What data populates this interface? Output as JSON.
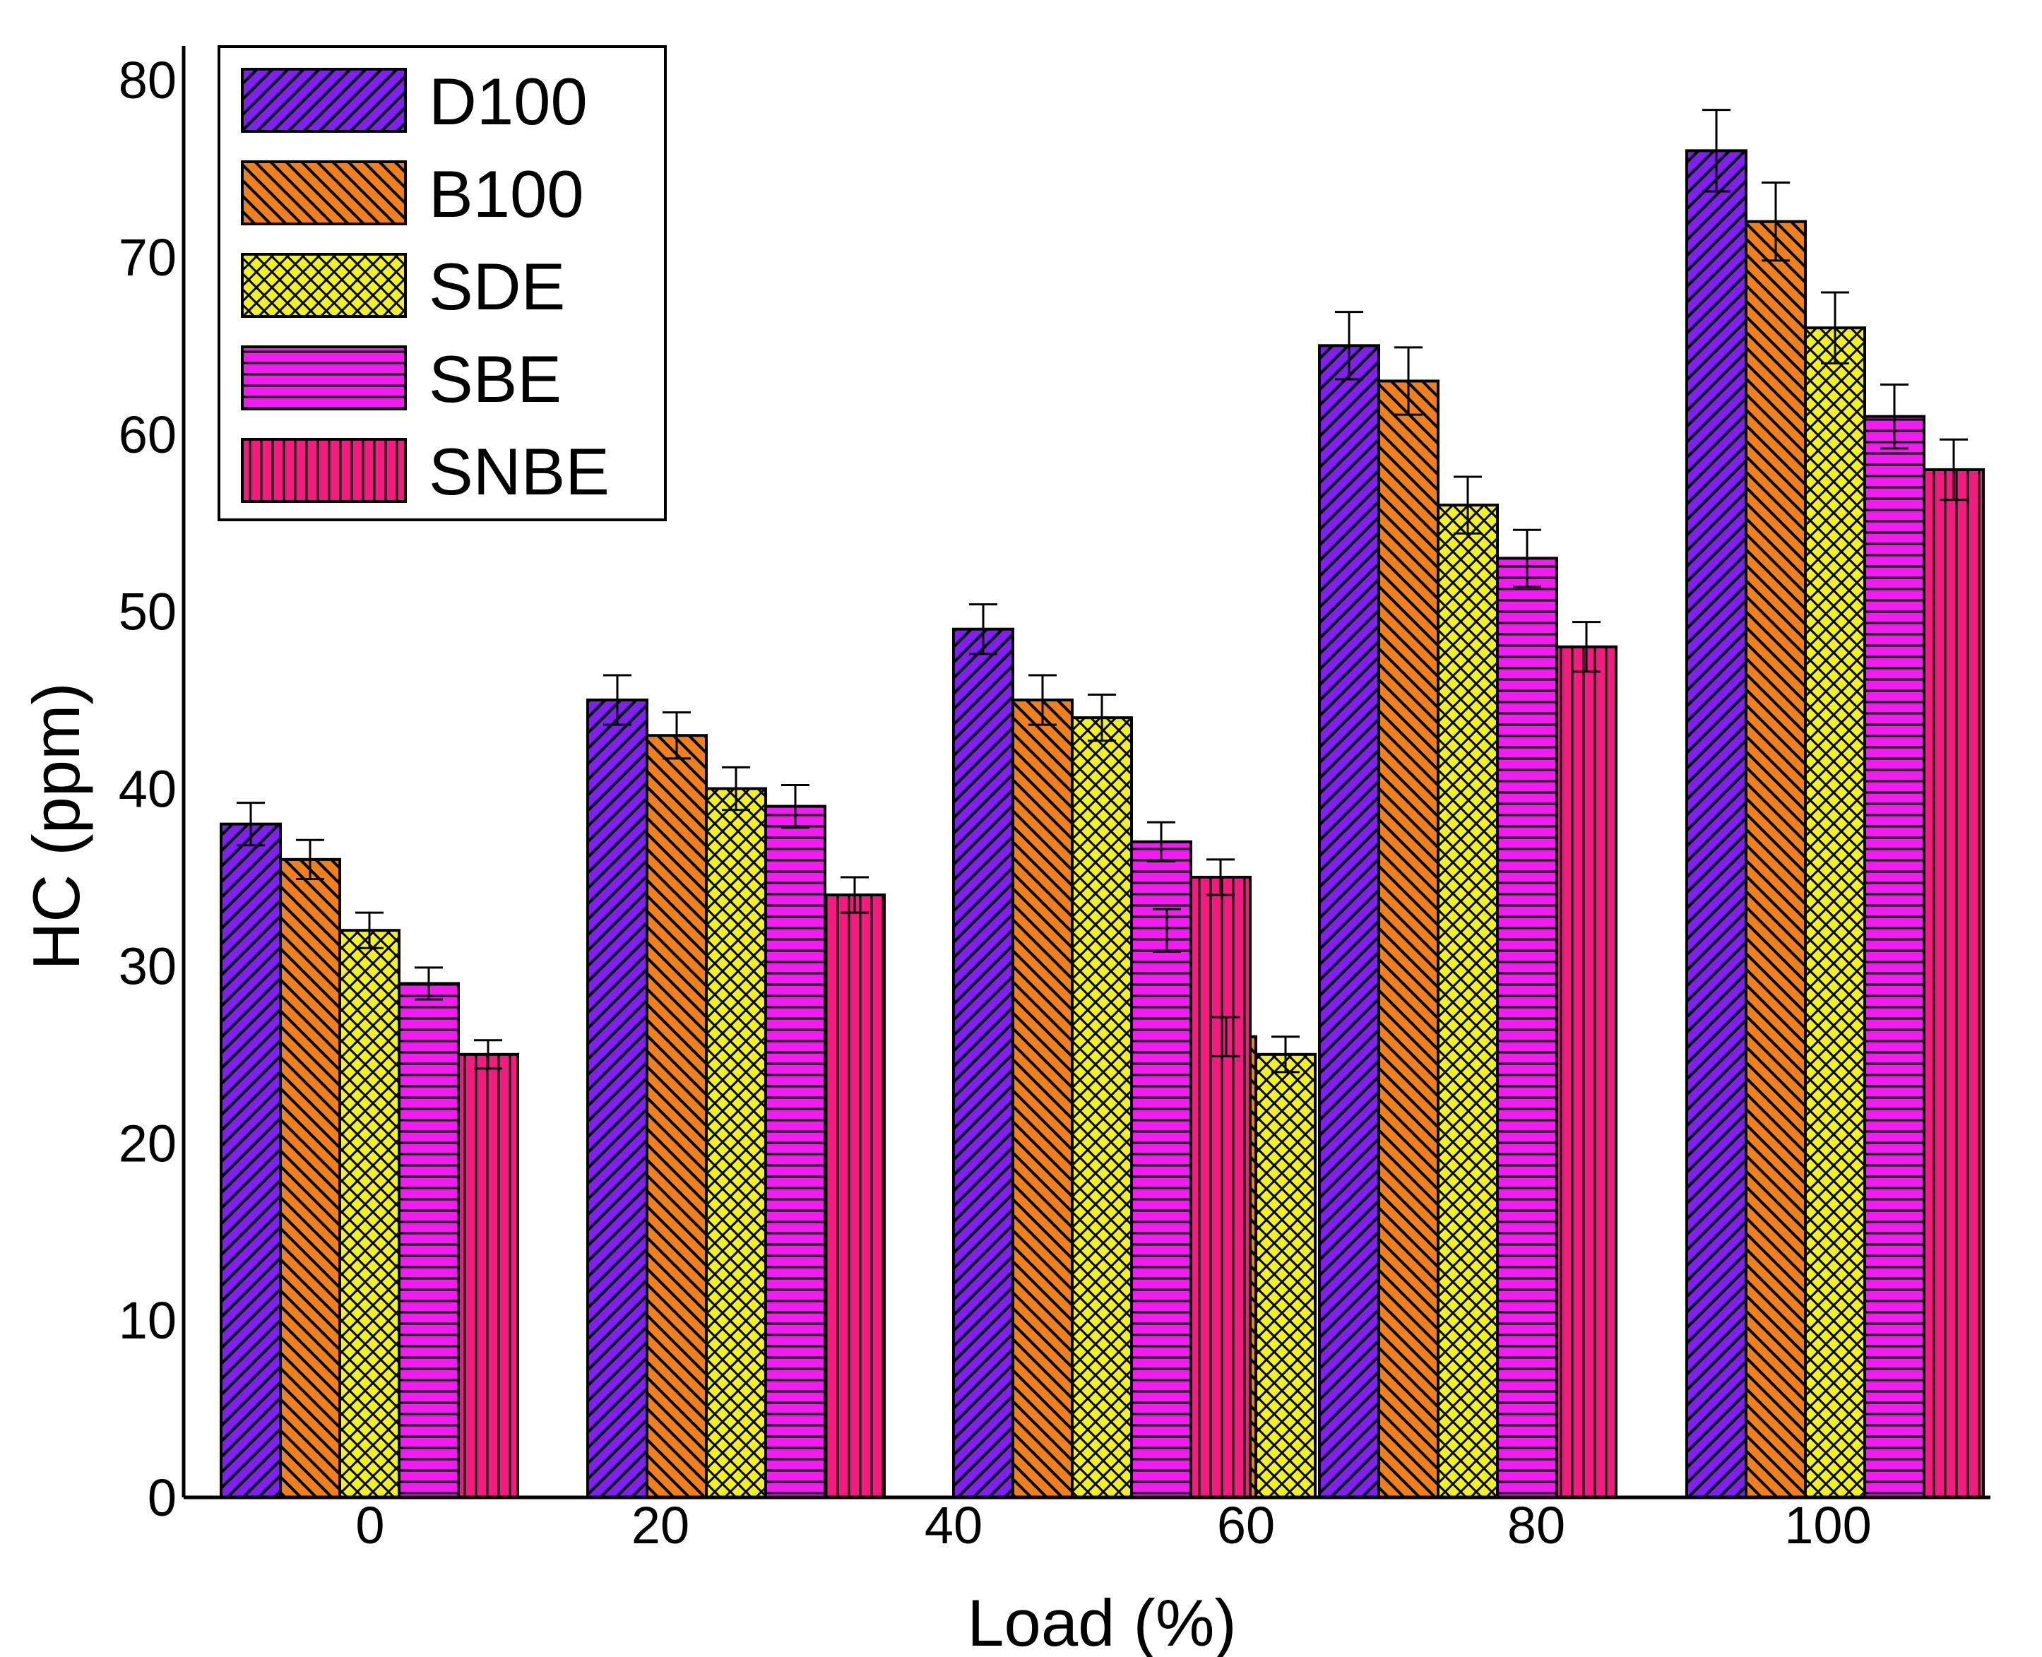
{
  "chart_data": {
    "type": "bar",
    "title": "",
    "xlabel": "Load (%)",
    "ylabel": "HC (ppm)",
    "ylim": [
      0,
      80
    ],
    "yticks": [
      0,
      10,
      20,
      30,
      40,
      50,
      60,
      70,
      80
    ],
    "xticks": [
      "0",
      "20",
      "40",
      "60",
      "80",
      "100"
    ],
    "categories": [
      "0",
      "20",
      "40",
      "60",
      "80",
      "100"
    ],
    "legend_position": "top-left",
    "series": [
      {
        "name": "D100",
        "color": "#7f1ff0",
        "pattern": "diag-right",
        "values": [
          38,
          45,
          49,
          32,
          65,
          76
        ],
        "errors": [
          1.2,
          1.4,
          1.4,
          1.2,
          1.9,
          2.3
        ]
      },
      {
        "name": "B100",
        "color": "#f07f1e",
        "pattern": "diag-left",
        "values": [
          36,
          43,
          45,
          26,
          63,
          72
        ],
        "errors": [
          1.1,
          1.3,
          1.4,
          1.1,
          1.9,
          2.2
        ]
      },
      {
        "name": "SDE",
        "color": "#f2f21c",
        "pattern": "crosshatch",
        "values": [
          32,
          40,
          44,
          25,
          56,
          66
        ],
        "errors": [
          1.0,
          1.2,
          1.3,
          1.0,
          1.6,
          2.0
        ]
      },
      {
        "name": "SBE",
        "color": "#f21cf2",
        "pattern": "horizontal",
        "values": [
          29,
          39,
          37,
          0,
          53,
          61
        ],
        "errors": [
          0.9,
          1.2,
          1.1,
          0,
          1.6,
          1.8
        ]
      },
      {
        "name": "SNBE",
        "color": "#f21c80",
        "pattern": "vertical",
        "values": [
          25,
          34,
          35,
          0,
          48,
          58
        ],
        "errors": [
          0.8,
          1.0,
          1.0,
          0,
          1.4,
          1.7
        ]
      }
    ]
  }
}
